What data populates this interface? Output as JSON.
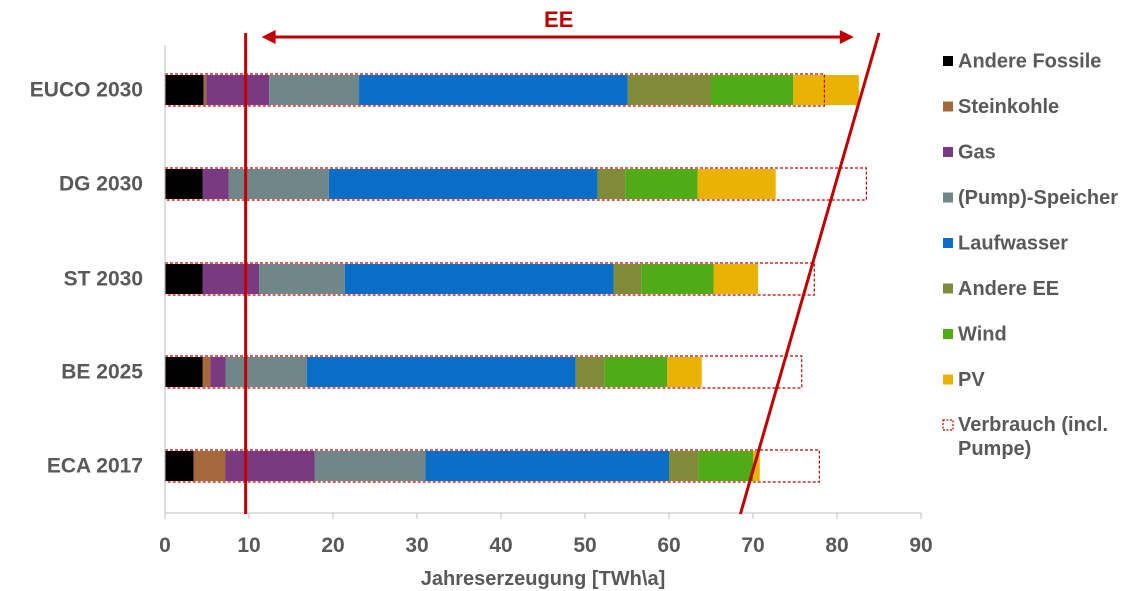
{
  "chart_data": {
    "type": "bar",
    "orientation": "horizontal",
    "stacked": true,
    "categories": [
      "EUCO 2030",
      "DG 2030",
      "ST 2030",
      "BE 2025",
      "ECA 2017"
    ],
    "xlabel": "Jahreserzeugung [TWh\\a]",
    "xlim": [
      0,
      90
    ],
    "xticks": [
      "0",
      "10",
      "20",
      "30",
      "40",
      "50",
      "60",
      "70",
      "80",
      "90"
    ],
    "series": [
      {
        "name": "Andere Fossile",
        "color": "#000000",
        "values": [
          4.6,
          4.5,
          4.5,
          4.5,
          3.4
        ]
      },
      {
        "name": "Steinkohle",
        "color": "#a5683a",
        "values": [
          0.3,
          0.0,
          0.0,
          0.9,
          3.8
        ]
      },
      {
        "name": "Gas",
        "color": "#7a3a82",
        "values": [
          7.5,
          3.1,
          6.7,
          1.8,
          10.6
        ]
      },
      {
        "name": "(Pump)-Speicher",
        "color": "#6f8789",
        "values": [
          10.7,
          11.9,
          10.2,
          9.7,
          13.2
        ]
      },
      {
        "name": "Laufwasser",
        "color": "#0b6ec6",
        "values": [
          32.0,
          32.0,
          32.0,
          32.0,
          29.0
        ]
      },
      {
        "name": "Andere EE",
        "color": "#7f8b38",
        "values": [
          9.9,
          3.3,
          3.3,
          3.4,
          3.5
        ]
      },
      {
        "name": "Wind",
        "color": "#4fab16",
        "values": [
          9.8,
          8.6,
          8.6,
          7.5,
          6.5
        ]
      },
      {
        "name": "PV",
        "color": "#e9b204",
        "values": [
          7.8,
          9.3,
          5.3,
          4.1,
          0.8
        ]
      }
    ],
    "consumption": {
      "name": "Verbrauch (incl. Pumpe)",
      "color": "#c00000",
      "values": [
        78.5,
        83.5,
        77.3,
        75.8,
        77.9
      ]
    },
    "annotations": {
      "ee_label": "EE",
      "ee_arrow_range": [
        11.5,
        82.0
      ],
      "threshold_line_x": 9.6,
      "slanted_line": {
        "x_top": 85.0,
        "x_bottom": 68.5
      }
    },
    "grid": false,
    "legend_position": "right"
  }
}
